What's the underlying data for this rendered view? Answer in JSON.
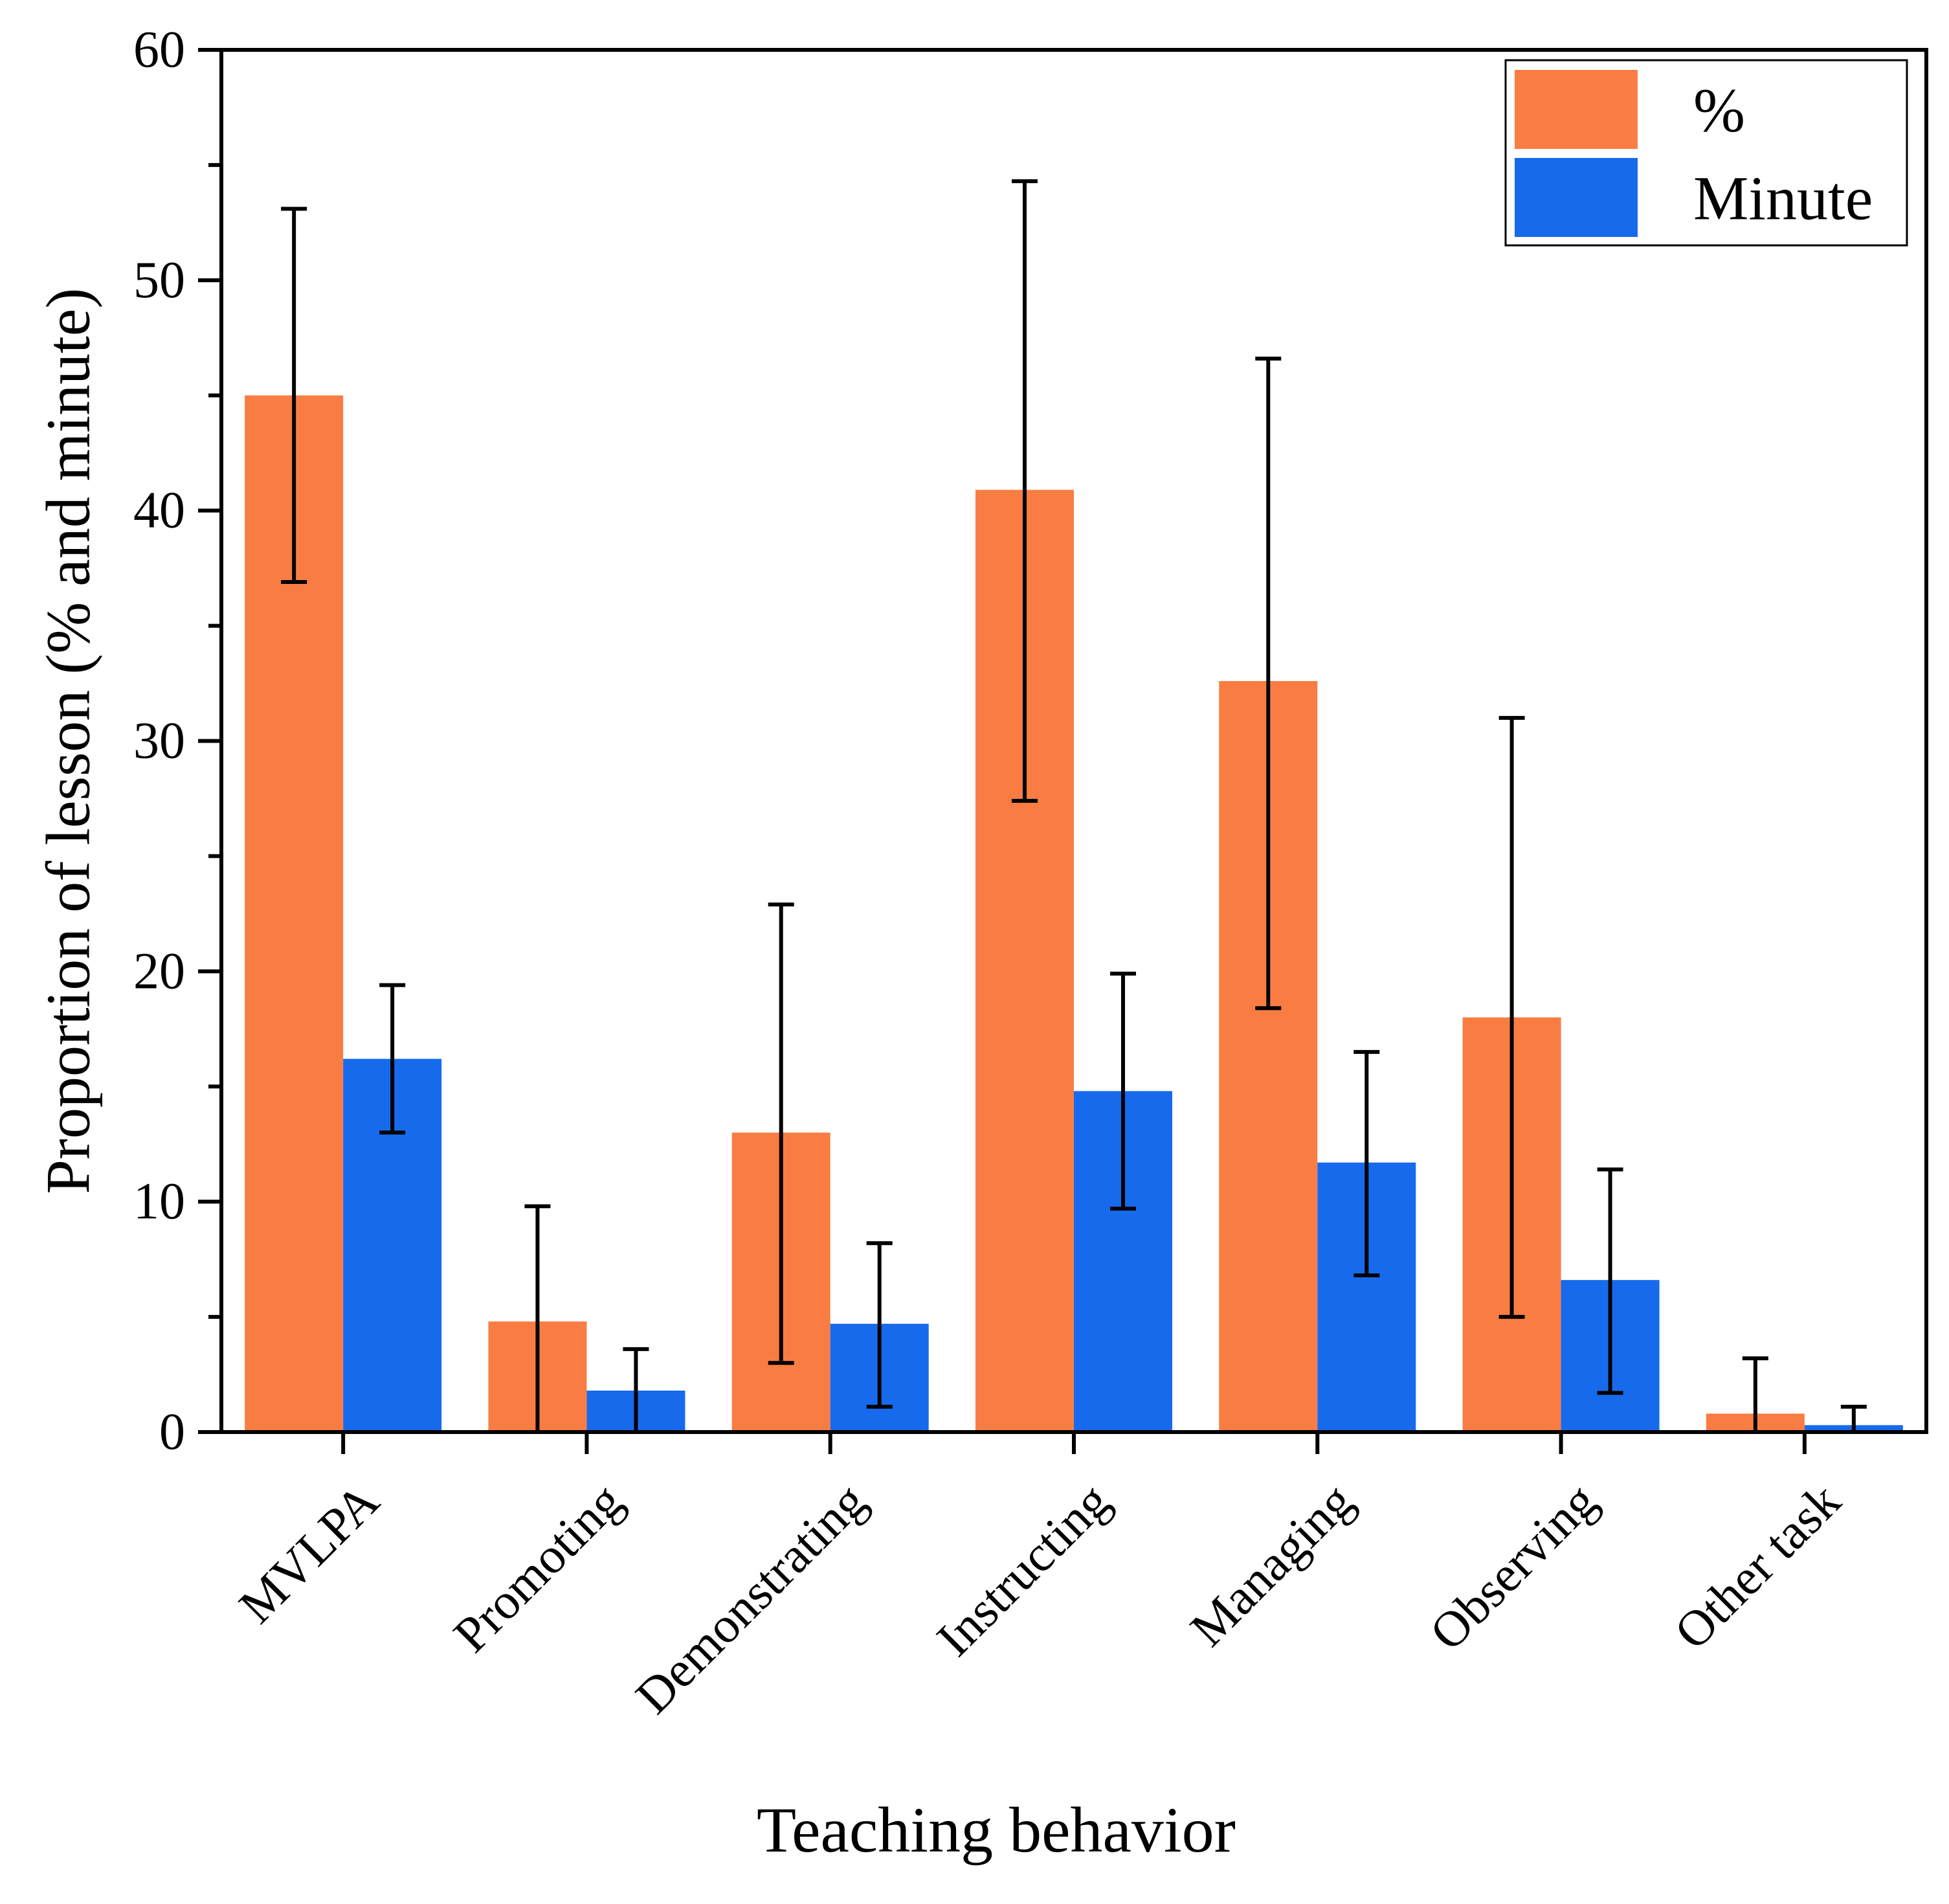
{
  "chart_data": {
    "type": "bar",
    "title": "",
    "xlabel": "Teaching behavior",
    "ylabel": "Proportion of lesson (% and minute)",
    "ylim": [
      0,
      60
    ],
    "yticks": [
      0,
      10,
      20,
      30,
      40,
      50,
      60
    ],
    "yminor_step": 5,
    "grid": false,
    "legend_position": "top-right",
    "categories": [
      "MVLPA",
      "Promoting",
      "Demonstrating",
      "Instructing",
      "Managing",
      "Observing",
      "Other task"
    ],
    "series": [
      {
        "name": "%",
        "color": "#F97D43",
        "values": [
          45.0,
          4.8,
          13.0,
          40.9,
          32.6,
          18.0,
          0.8
        ],
        "err_low": [
          36.9,
          0.0,
          3.0,
          27.4,
          18.4,
          5.0,
          0.0
        ],
        "err_high": [
          53.1,
          9.8,
          22.9,
          54.3,
          46.6,
          31.0,
          3.2
        ]
      },
      {
        "name": "Minute",
        "color": "#176AEC",
        "values": [
          16.2,
          1.8,
          4.7,
          14.8,
          11.7,
          6.6,
          0.3
        ],
        "err_low": [
          13.0,
          0.0,
          1.1,
          9.7,
          6.8,
          1.7,
          0.0
        ],
        "err_high": [
          19.4,
          3.6,
          8.2,
          19.9,
          16.5,
          11.4,
          1.1
        ]
      }
    ]
  }
}
